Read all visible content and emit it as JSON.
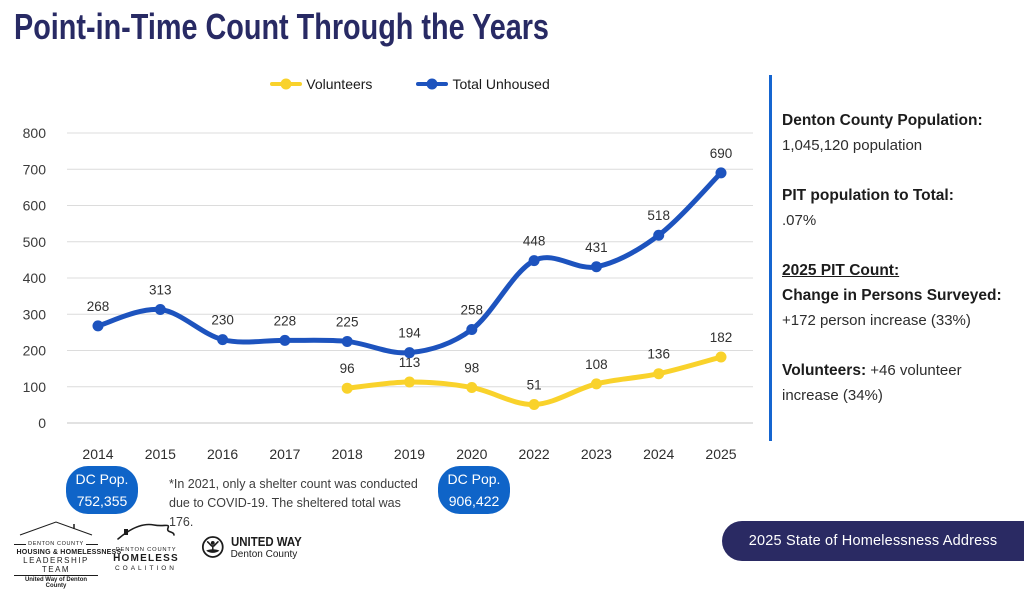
{
  "title": "Point-in-Time Count Through the Years",
  "legend": {
    "items": [
      {
        "label": "Volunteers",
        "color": "#F9D22B"
      },
      {
        "label": "Total Unhoused",
        "color": "#1D53BE"
      }
    ]
  },
  "chart_data": {
    "type": "line",
    "title": "Point-in-Time Count Through the Years",
    "x": [
      "2014",
      "2015",
      "2016",
      "2017",
      "2018",
      "2019",
      "2020",
      "2022",
      "2023",
      "2024",
      "2025"
    ],
    "series": [
      {
        "name": "Volunteers",
        "color": "#F9D22B",
        "values": [
          null,
          null,
          null,
          null,
          96,
          113,
          98,
          51,
          108,
          136,
          182
        ]
      },
      {
        "name": "Total Unhoused",
        "color": "#1D53BE",
        "values": [
          268,
          313,
          230,
          228,
          225,
          194,
          258,
          448,
          431,
          518,
          690
        ]
      }
    ],
    "ylim": [
      0,
      800
    ],
    "ytick_step": 100,
    "grid": true,
    "smooth": true,
    "legend_position": "top-center",
    "data_labels": true
  },
  "stats_panel": {
    "population_heading": "Denton County Population:",
    "population_value": "1,045,120 population",
    "ratio_heading": "PIT population to Total:",
    "ratio_value": ".07%",
    "pit2025_heading": "2025 PIT Count: ",
    "pit2025_label": "Change in Persons Surveyed:",
    "pit2025_value": " +172 person increase (33%)",
    "volunteers_label": "Volunteers:",
    "volunteers_value": " +46 volunteer increase (34%)"
  },
  "badges": {
    "badge_2014": {
      "line1": "DC Pop.",
      "line2": "752,355"
    },
    "badge_2020": {
      "line1": "DC Pop.",
      "line2": "906,422"
    }
  },
  "footnote": {
    "line1": "*In 2021, only a shelter count was conducted",
    "line2": "due to COVID-19. The sheltered total was 176."
  },
  "event_pill": {
    "label": "2025 State of Homelessness Address"
  },
  "logos": {
    "leadership": {
      "line1": "DENTON COUNTY",
      "line2": "HOUSING & HOMELESSNESS",
      "line3": "LEADERSHIP TEAM",
      "line4": "United Way of Denton County"
    },
    "coalition": {
      "line1": "DENTON COUNTY",
      "line2": "HOMELESS",
      "line3": "COALITION"
    },
    "united_way": {
      "line1": "UNITED WAY",
      "line2": "Denton County"
    }
  },
  "colors": {
    "title_navy": "#282A64",
    "line_blue": "#1D53BE",
    "line_yellow": "#F9D22B",
    "badge_blue": "#0F64C8",
    "divider_blue": "#1565D0",
    "pill_navy": "#2A2A63",
    "gridline": "#DCDCDC"
  }
}
